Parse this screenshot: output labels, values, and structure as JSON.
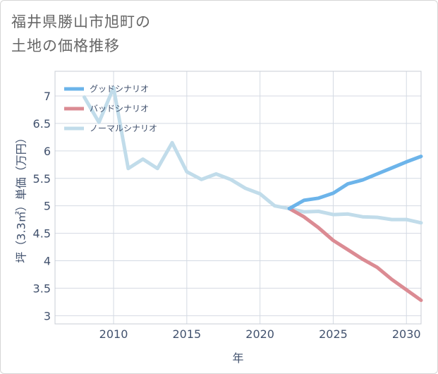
{
  "title": {
    "line1": "福井県勝山市旭町の",
    "line2": "土地の価格推移"
  },
  "chart_data": {
    "type": "line",
    "xlabel": "年",
    "ylabel": "坪（3.3㎡）単価（万円）",
    "xlim": [
      2006,
      2031
    ],
    "ylim": [
      2.85,
      7.45
    ],
    "x_ticks": [
      2010,
      2015,
      2020,
      2025,
      2030
    ],
    "y_ticks": [
      3,
      3.5,
      4,
      4.5,
      5,
      5.5,
      6,
      6.5,
      7
    ],
    "y_tick_labels": [
      "3",
      "3.5",
      "4",
      "4.5",
      "5",
      "5.5",
      "6",
      "6.5",
      "7"
    ],
    "grid": true,
    "legend_position": "top-left",
    "series": [
      {
        "name": "グッドシナリオ",
        "color": "#6cb4ea",
        "x": [
          2022,
          2023,
          2024,
          2025,
          2026,
          2027,
          2028,
          2029,
          2030,
          2031
        ],
        "y": [
          4.95,
          5.1,
          5.14,
          5.23,
          5.4,
          5.47,
          5.58,
          5.69,
          5.8,
          5.9
        ]
      },
      {
        "name": "バッドシナリオ",
        "color": "#db8b93",
        "x": [
          2022,
          2023,
          2024,
          2025,
          2026,
          2027,
          2028,
          2029,
          2030,
          2031
        ],
        "y": [
          4.95,
          4.8,
          4.6,
          4.37,
          4.2,
          4.03,
          3.88,
          3.66,
          3.47,
          3.28
        ]
      },
      {
        "name": "ノーマルシナリオ",
        "color": "#c1dcea",
        "x": [
          2008,
          2009,
          2010,
          2011,
          2012,
          2013,
          2014,
          2015,
          2016,
          2017,
          2018,
          2019,
          2020,
          2021,
          2022,
          2023,
          2024,
          2025,
          2026,
          2027,
          2028,
          2029,
          2030,
          2031
        ],
        "y": [
          6.98,
          6.52,
          7.15,
          5.68,
          5.85,
          5.68,
          6.15,
          5.62,
          5.48,
          5.58,
          5.48,
          5.32,
          5.22,
          5.0,
          4.95,
          4.89,
          4.9,
          4.84,
          4.85,
          4.8,
          4.79,
          4.75,
          4.75,
          4.69
        ]
      }
    ]
  }
}
